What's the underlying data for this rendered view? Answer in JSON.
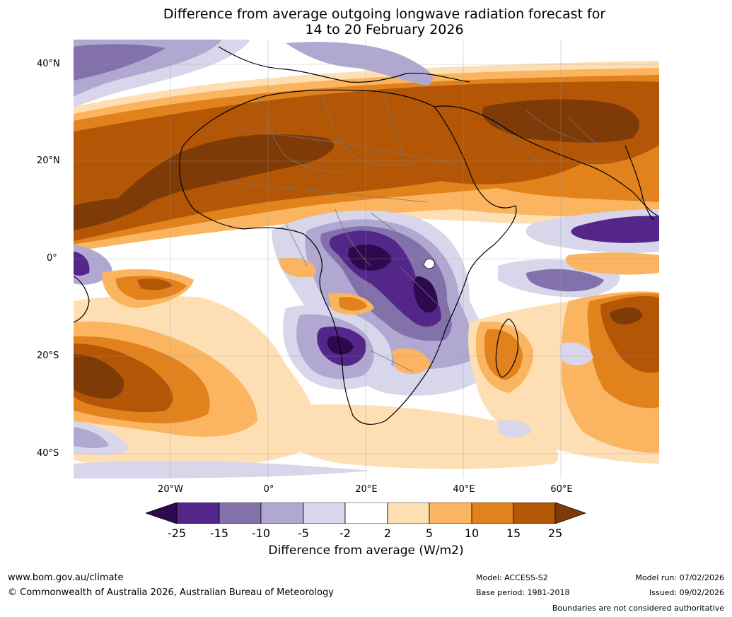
{
  "title": {
    "line1": "Difference from average outgoing longwave radiation forecast for",
    "line2": "14 to 20 February 2026"
  },
  "map": {
    "lat_labels": [
      "40°N",
      "20°N",
      "0°",
      "20°S",
      "40°S"
    ],
    "lon_labels": [
      "20°W",
      "0°",
      "20°E",
      "40°E",
      "60°E"
    ],
    "palette": {
      "lt_m25": "#2d0a4e",
      "m25_m15": "#54268a",
      "m15_m10": "#8271ab",
      "m10_m5": "#b1a8d1",
      "m5_m2": "#d7d6ea",
      "m2_2": "#ffffff",
      "p2_p5": "#fedfb4",
      "p5_p10": "#fbb561",
      "p10_p15": "#e1821d",
      "p15_p25": "#b35706",
      "gt_p25": "#7e3b08"
    }
  },
  "colorbar": {
    "ticks": [
      "-25",
      "-15",
      "-10",
      "-5",
      "-2",
      "2",
      "5",
      "10",
      "15",
      "25"
    ],
    "label": "Difference from average (W/m2)",
    "colors": [
      "#2d0a4e",
      "#54268a",
      "#8271ab",
      "#b1a8d1",
      "#d7d6ea",
      "#ffffff",
      "#fedfb4",
      "#fbb561",
      "#e1821d",
      "#b35706",
      "#7e3b08"
    ]
  },
  "footer": {
    "url": "www.bom.gov.au/climate",
    "copyright": "© Commonwealth of Australia 2026, Australian Bureau of Meteorology",
    "model": "Model: ACCESS-S2",
    "base_period": "Base period: 1981-2018",
    "model_run": "Model run: 07/02/2026",
    "issued": "Issued: 09/02/2026",
    "disclaimer": "Boundaries are not considered authoritative"
  }
}
